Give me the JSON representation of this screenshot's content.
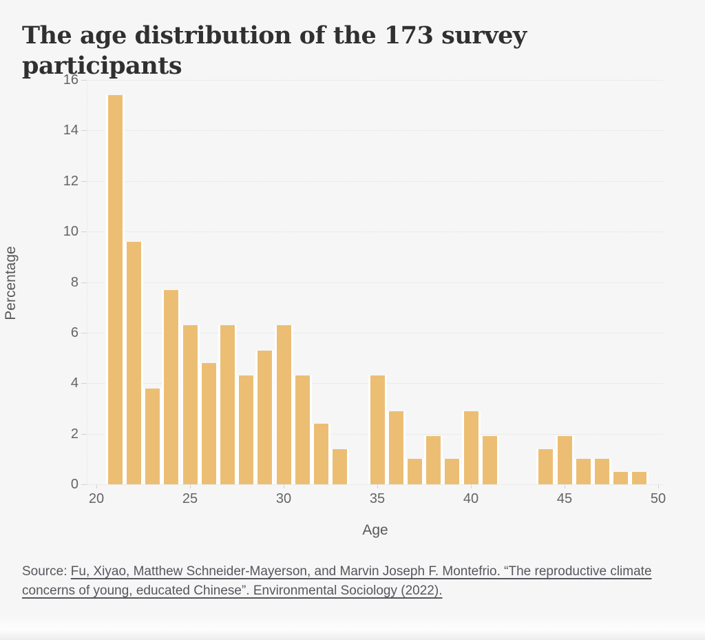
{
  "title": "The age distribution of the 173 survey participants",
  "chart_data": {
    "type": "bar",
    "title": "The age distribution of the 173 survey participants",
    "xlabel": "Age",
    "ylabel": "Percentage",
    "x": [
      21,
      22,
      23,
      24,
      25,
      26,
      27,
      28,
      29,
      30,
      31,
      32,
      33,
      34,
      35,
      36,
      37,
      38,
      39,
      40,
      41,
      42,
      43,
      44,
      45,
      46,
      47,
      48,
      49
    ],
    "values": [
      15.4,
      9.6,
      3.8,
      7.7,
      6.3,
      4.8,
      6.3,
      4.3,
      5.3,
      6.3,
      4.3,
      2.4,
      1.4,
      0,
      4.3,
      2.9,
      1.0,
      1.9,
      1.0,
      2.9,
      1.9,
      0,
      0,
      1.4,
      1.9,
      1.0,
      1.0,
      0.5,
      0.5
    ],
    "xlim": [
      20,
      50
    ],
    "ylim": [
      0,
      16
    ],
    "x_ticks": [
      20,
      25,
      30,
      35,
      40,
      45,
      50
    ],
    "y_ticks": [
      0,
      2,
      4,
      6,
      8,
      10,
      12,
      14,
      16
    ],
    "bar_color": "#ecbe74",
    "grid": "dotted horizontal",
    "legend": "none"
  },
  "source": {
    "prefix": "Source: ",
    "citation": "Fu, Xiyao, Matthew Schneider-Mayerson, and Marvin Joseph F. Montefrio. “The reproductive climate concerns of young, educated Chinese”. Environmental Sociology (2022)."
  }
}
